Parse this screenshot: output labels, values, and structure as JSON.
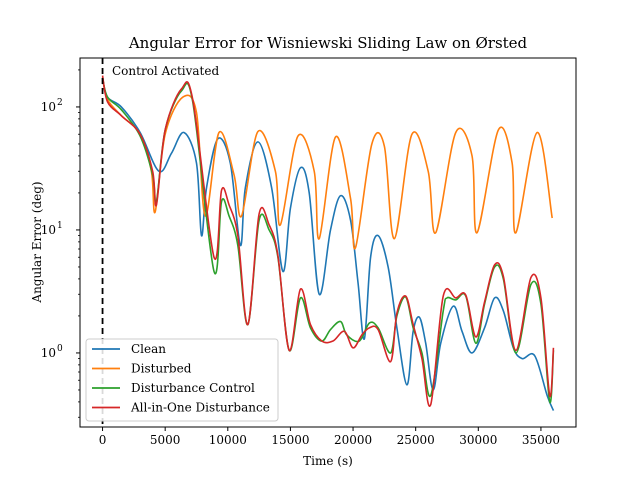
{
  "chart_data": {
    "type": "line",
    "title": "Angular Error for Wisniewski Sliding Law on Ørsted",
    "xlabel": "Time (s)",
    "ylabel": "Angular Error (deg)",
    "xlim": [
      -1800,
      37800
    ],
    "ylim": [
      0.25,
      250
    ],
    "yscale": "log",
    "grid": false,
    "legend_position": "lower-left",
    "x_ticks": [
      0,
      5000,
      10000,
      15000,
      20000,
      25000,
      30000,
      35000
    ],
    "x_tick_labels": [
      "0",
      "5000",
      "10000",
      "15000",
      "20000",
      "25000",
      "30000",
      "35000"
    ],
    "y_ticks": [
      1,
      10,
      100
    ],
    "y_tick_labels": [
      "10^0",
      "10^1",
      "10^2"
    ],
    "annotation": {
      "text": "Control Activated",
      "x": 0,
      "line_style": "dashed"
    },
    "series": [
      {
        "name": "Clean",
        "color": "#1f77b4",
        "points": [
          [
            0,
            170
          ],
          [
            400,
            120
          ],
          [
            1500,
            100
          ],
          [
            3000,
            62
          ],
          [
            4500,
            30
          ],
          [
            5500,
            42
          ],
          [
            6500,
            62
          ],
          [
            7500,
            35
          ],
          [
            7900,
            9
          ],
          [
            8300,
            22
          ],
          [
            9200,
            55
          ],
          [
            10200,
            35
          ],
          [
            11000,
            7.5
          ],
          [
            11400,
            22
          ],
          [
            12400,
            52
          ],
          [
            13500,
            22
          ],
          [
            14400,
            4.6
          ],
          [
            15000,
            15
          ],
          [
            15800,
            32
          ],
          [
            16500,
            20
          ],
          [
            17300,
            3
          ],
          [
            18200,
            10
          ],
          [
            19000,
            19
          ],
          [
            19800,
            12
          ],
          [
            20400,
            3.7
          ],
          [
            20900,
            1.3
          ],
          [
            21400,
            6
          ],
          [
            22000,
            9
          ],
          [
            22800,
            5
          ],
          [
            23500,
            1.6
          ],
          [
            24300,
            0.55
          ],
          [
            24800,
            1.5
          ],
          [
            25300,
            1.95
          ],
          [
            25800,
            1.2
          ],
          [
            26400,
            0.5
          ],
          [
            27000,
            1.2
          ],
          [
            28000,
            2.4
          ],
          [
            28700,
            1.5
          ],
          [
            29500,
            1.0
          ],
          [
            30500,
            1.6
          ],
          [
            31300,
            2.8
          ],
          [
            32000,
            2.2
          ],
          [
            32800,
            1.1
          ],
          [
            33500,
            0.9
          ],
          [
            34500,
            0.95
          ],
          [
            35500,
            0.45
          ],
          [
            36000,
            0.34
          ]
        ]
      },
      {
        "name": "Disturbed",
        "color": "#ff7f0e",
        "points": [
          [
            0,
            175
          ],
          [
            400,
            115
          ],
          [
            1500,
            85
          ],
          [
            3000,
            60
          ],
          [
            3900,
            30
          ],
          [
            4200,
            14
          ],
          [
            5000,
            60
          ],
          [
            6400,
            120
          ],
          [
            7500,
            90
          ],
          [
            8200,
            13
          ],
          [
            9300,
            62
          ],
          [
            10500,
            28
          ],
          [
            11100,
            13
          ],
          [
            12400,
            63
          ],
          [
            13800,
            30
          ],
          [
            14200,
            11
          ],
          [
            15600,
            58
          ],
          [
            16900,
            30
          ],
          [
            17300,
            8.5
          ],
          [
            18600,
            57
          ],
          [
            19800,
            18
          ],
          [
            20200,
            7.2
          ],
          [
            21500,
            50
          ],
          [
            22500,
            48
          ],
          [
            23300,
            8.5
          ],
          [
            24700,
            60
          ],
          [
            26000,
            30
          ],
          [
            26600,
            9.5
          ],
          [
            28200,
            62
          ],
          [
            29500,
            40
          ],
          [
            29900,
            9.5
          ],
          [
            31600,
            65
          ],
          [
            32700,
            35
          ],
          [
            33000,
            9.5
          ],
          [
            34700,
            62
          ],
          [
            35900,
            12.5
          ]
        ]
      },
      {
        "name": "Disturbance Control",
        "color": "#2ca02c",
        "points": [
          [
            0,
            170
          ],
          [
            400,
            120
          ],
          [
            1500,
            95
          ],
          [
            3000,
            58
          ],
          [
            4000,
            28
          ],
          [
            4300,
            17
          ],
          [
            5000,
            65
          ],
          [
            6300,
            135
          ],
          [
            7200,
            110
          ],
          [
            8900,
            4.6
          ],
          [
            9500,
            17
          ],
          [
            10100,
            13
          ],
          [
            10800,
            7.5
          ],
          [
            11600,
            1.7
          ],
          [
            12500,
            12
          ],
          [
            13300,
            10
          ],
          [
            14000,
            6
          ],
          [
            14900,
            1.05
          ],
          [
            15800,
            2.8
          ],
          [
            16600,
            1.6
          ],
          [
            17500,
            1.25
          ],
          [
            18200,
            1.55
          ],
          [
            19000,
            1.8
          ],
          [
            19500,
            1.4
          ],
          [
            20500,
            1.25
          ],
          [
            21300,
            1.75
          ],
          [
            22000,
            1.6
          ],
          [
            23000,
            1.0
          ],
          [
            23500,
            2.0
          ],
          [
            24200,
            2.85
          ],
          [
            24800,
            1.6
          ],
          [
            25500,
            1.0
          ],
          [
            26200,
            0.45
          ],
          [
            27200,
            2.2
          ],
          [
            27500,
            2.8
          ],
          [
            28200,
            2.7
          ],
          [
            29000,
            2.9
          ],
          [
            29800,
            1.2
          ],
          [
            30500,
            2.5
          ],
          [
            31300,
            5.0
          ],
          [
            32000,
            4.0
          ],
          [
            33000,
            1.0
          ],
          [
            34200,
            3.6
          ],
          [
            35000,
            2.5
          ],
          [
            35700,
            0.4
          ],
          [
            36000,
            1.05
          ]
        ]
      },
      {
        "name": "All-in-One Disturbance",
        "color": "#d62728",
        "points": [
          [
            0,
            180
          ],
          [
            400,
            110
          ],
          [
            1500,
            85
          ],
          [
            3000,
            60
          ],
          [
            4000,
            30
          ],
          [
            4300,
            16
          ],
          [
            5000,
            65
          ],
          [
            6300,
            140
          ],
          [
            7200,
            115
          ],
          [
            8900,
            6
          ],
          [
            9500,
            21
          ],
          [
            10100,
            16
          ],
          [
            10800,
            9
          ],
          [
            11600,
            1.7
          ],
          [
            12500,
            13.5
          ],
          [
            13300,
            11
          ],
          [
            14000,
            6.2
          ],
          [
            14900,
            1.05
          ],
          [
            15800,
            3.3
          ],
          [
            16600,
            1.7
          ],
          [
            17500,
            1.25
          ],
          [
            18400,
            1.25
          ],
          [
            19300,
            1.5
          ],
          [
            20000,
            1.1
          ],
          [
            20700,
            1.4
          ],
          [
            21300,
            1.6
          ],
          [
            22000,
            1.55
          ],
          [
            23000,
            0.85
          ],
          [
            23500,
            2.1
          ],
          [
            24200,
            2.9
          ],
          [
            24800,
            1.7
          ],
          [
            25500,
            0.9
          ],
          [
            26200,
            0.38
          ],
          [
            27200,
            2.9
          ],
          [
            28200,
            2.8
          ],
          [
            29000,
            2.95
          ],
          [
            29800,
            1.35
          ],
          [
            30500,
            2.6
          ],
          [
            31300,
            5.2
          ],
          [
            32000,
            4.2
          ],
          [
            33000,
            1.05
          ],
          [
            34200,
            4.1
          ],
          [
            35000,
            2.8
          ],
          [
            35700,
            0.45
          ],
          [
            36000,
            1.1
          ]
        ]
      }
    ]
  }
}
